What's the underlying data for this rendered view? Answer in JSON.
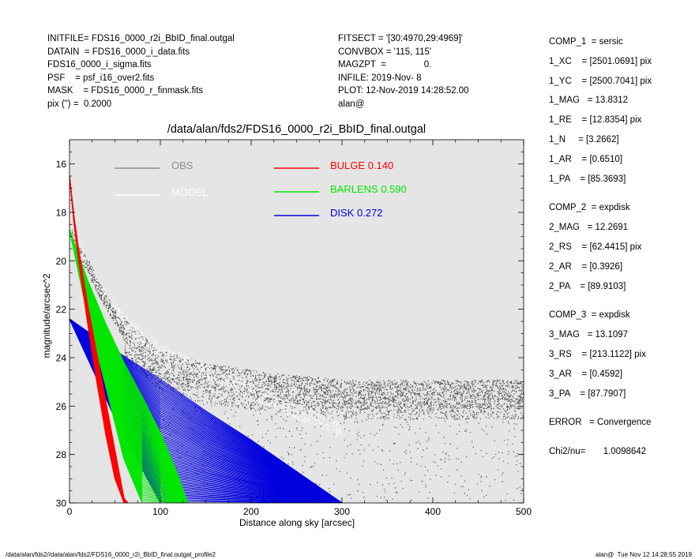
{
  "header_left": [
    "INITFILE= FDS16_0000_r2i_BbID_final.outgal",
    "DATAIN  = FDS16_0000_i_data.fits",
    "FDS16_0000_i_sigma.fits",
    "PSF    = psf_i16_over2.fits",
    "MASK    = FDS16_0000_r_finmask.fits",
    "pix (\") =  0.2000"
  ],
  "header_mid": [
    "FITSECT = '[30:4970,29:4969]'",
    "CONVBOX = '115, 115'",
    "MAGZPT  =               0.",
    "INFILE: 2019-Nov- 8",
    "PLOT: 12-Nov-2019 14:28:52.00",
    "alan@"
  ],
  "components": [
    "COMP_1  = sersic",
    "1_XC    = [2501.0691] pix",
    "1_YC    = [2500.7041] pix",
    "1_MAG   = 13.8312",
    "1_RE    = [12.8354] pix",
    "1_N     = [3.2662]",
    "1_AR    = [0.6510]",
    "1_PA    = [85.3693]",
    "COMP_2  = expdisk",
    "2_MAG   = 12.2691",
    "2_RS    = [62.4415] pix",
    "2_AR    = [0.3926]",
    "2_PA    = [89.9103]",
    "COMP_3  = expdisk",
    "3_MAG   = 13.1097",
    "3_RS    = [213.1122] pix",
    "3_AR    = [0.4592]",
    "3_PA    = [87.7907]",
    "ERROR   = Convergence",
    "Chi2/nu=       1.0098642"
  ],
  "footer_left": "/data/alan/fds2//data/alan/fds2/FDS16_0000_r2i_BbID_final.outgal_profile2",
  "footer_right": "alan@  Tue Nov 12 14:28:55 2019",
  "chart_data": {
    "type": "scatter",
    "title": "/data/alan/fds2/FDS16_0000_r2i_BbID_final.outgal",
    "xlabel": "Distance along sky [arcsec]",
    "ylabel": "magnitude/arcsec^2",
    "xlim": [
      0,
      500
    ],
    "ylim": [
      30,
      15
    ],
    "y_inverted": true,
    "x_ticks": [
      0,
      100,
      200,
      300,
      400,
      500
    ],
    "y_ticks": [
      16,
      18,
      20,
      22,
      24,
      26,
      28,
      30
    ],
    "background": "#e5e5e5",
    "legend": [
      {
        "label": "OBS",
        "color": "#8c8c8c"
      },
      {
        "label": "MODEL",
        "color": "#ffffff"
      },
      {
        "label": "BULGE",
        "value": "0.140",
        "color": "#ff0000"
      },
      {
        "label": "BARLENS",
        "value": "0.590",
        "color": "#00e600"
      },
      {
        "label": "DISK",
        "value": "0.272",
        "color": "#0000dd"
      }
    ],
    "series": [
      {
        "name": "OBS",
        "color": "#505050",
        "x": [
          0,
          10,
          20,
          30,
          40,
          50,
          60,
          70,
          80,
          90,
          100,
          120,
          150,
          200,
          250,
          300,
          350,
          400,
          450,
          500
        ],
        "y": [
          18.6,
          19.6,
          20.1,
          20.9,
          21.6,
          22.2,
          22.9,
          23.3,
          23.6,
          24.0,
          24.3,
          24.5,
          24.8,
          25.1,
          25.3,
          25.5,
          25.5,
          25.5,
          25.5,
          25.5
        ]
      },
      {
        "name": "MODEL",
        "color": "#ffffff",
        "x": [
          0,
          20,
          40,
          60,
          80,
          100,
          150,
          200,
          250,
          300
        ],
        "y": [
          18.5,
          20.3,
          21.6,
          22.5,
          23.2,
          23.7,
          24.6,
          25.4,
          26.2,
          27.0
        ]
      },
      {
        "name": "BULGE",
        "color": "#ff0000",
        "x": [
          0,
          5,
          10,
          20,
          30,
          40,
          50,
          60,
          64
        ],
        "y_faint": [
          16.5,
          18.5,
          20.0,
          22.6,
          25.0,
          27.2,
          29.0,
          30.0,
          30.0
        ],
        "y_bright": [
          16.5,
          18.2,
          19.5,
          21.8,
          23.8,
          25.8,
          27.8,
          29.8,
          30.0
        ]
      },
      {
        "name": "BARLENS",
        "color": "#00e600",
        "x": [
          0,
          20,
          40,
          60,
          80,
          100,
          120,
          130
        ],
        "y_faint": [
          18.7,
          22.3,
          25.2,
          28.2,
          30.0,
          30.0,
          30.0,
          30.0
        ],
        "y_bright": [
          18.7,
          20.8,
          22.6,
          24.2,
          25.6,
          27.1,
          28.9,
          30.0
        ]
      },
      {
        "name": "DISK",
        "color": "#0000dd",
        "x": [
          0,
          50,
          100,
          150,
          200,
          250,
          300
        ],
        "y_faint": [
          22.4,
          26.5,
          30.0,
          30.0,
          30.0,
          30.0,
          30.0
        ],
        "y_bright": [
          22.4,
          23.7,
          24.9,
          26.2,
          27.4,
          28.7,
          30.0
        ]
      }
    ]
  }
}
